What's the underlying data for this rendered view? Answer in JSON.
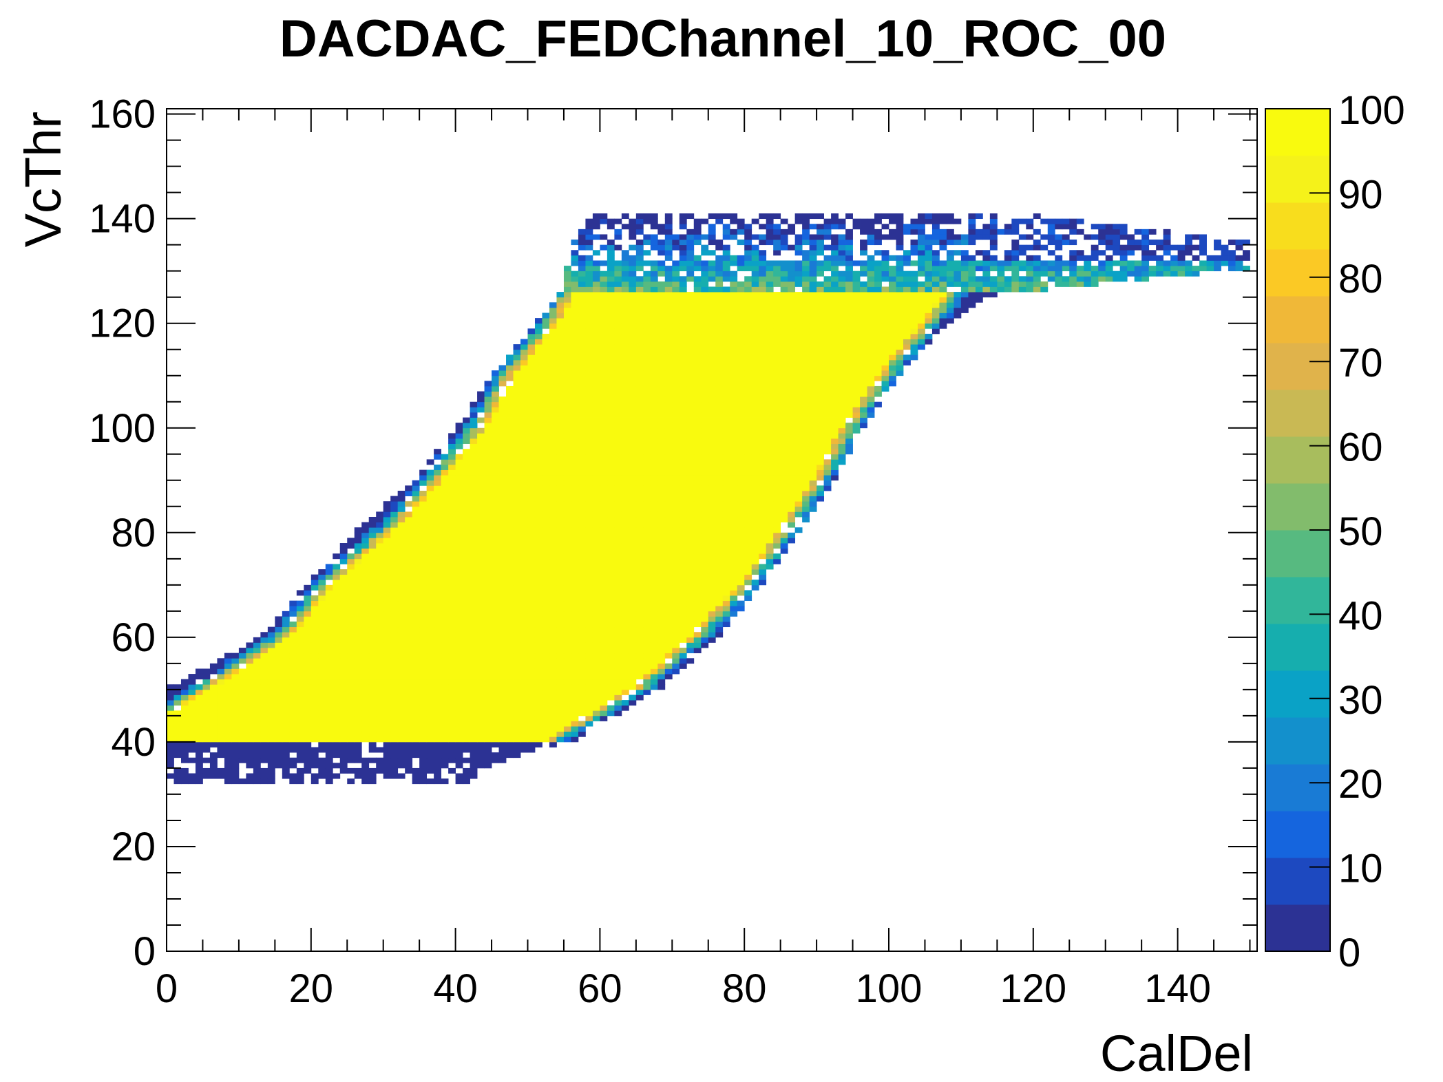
{
  "chart_data": {
    "type": "heatmap",
    "title": "DACDAC_FEDChannel_10_ROC_00",
    "xlabel": "CalDel",
    "ylabel": "VcThr",
    "xlim": [
      0,
      151
    ],
    "ylim": [
      0,
      161
    ],
    "zlim": [
      0,
      100
    ],
    "x_ticks": [
      0,
      20,
      40,
      60,
      80,
      100,
      120,
      140
    ],
    "y_ticks": [
      0,
      20,
      40,
      60,
      80,
      100,
      120,
      140,
      160
    ],
    "z_ticks": [
      0,
      10,
      20,
      30,
      40,
      50,
      60,
      70,
      80,
      90,
      100
    ],
    "x_ticks_text": [
      "0",
      "20",
      "40",
      "60",
      "80",
      "100",
      "120",
      "140"
    ],
    "y_ticks_text": [
      "0",
      "20",
      "40",
      "60",
      "80",
      "100",
      "120",
      "140",
      "160"
    ],
    "z_ticks_text": [
      "0",
      "10",
      "20",
      "30",
      "40",
      "50",
      "60",
      "70",
      "80",
      "90",
      "100"
    ],
    "grid": false,
    "colorbar": "right",
    "palette": [
      "#2c3294",
      "#1d49c0",
      "#1565de",
      "#197bd5",
      "#1390cc",
      "#0aa2c6",
      "#16aeae",
      "#31b69a",
      "#57ba80",
      "#82bc6c",
      "#a8bd5d",
      "#c9b954",
      "#e0b34b",
      "#f0b838",
      "#fbc925",
      "#f8dd1d",
      "#f5f21a",
      "#f9fa0e"
    ],
    "efficiency_region": {
      "description_rows": [
        {
          "vcthr": 32,
          "full_from": null,
          "full_to": null,
          "edge_from": 0,
          "edge_to": 41
        },
        {
          "vcthr": 35,
          "full_from": null,
          "full_to": null,
          "edge_from": 0,
          "edge_to": 44
        },
        {
          "vcthr": 40,
          "full_from": 0,
          "full_to": 52,
          "edge_from": 0,
          "edge_to": 56
        },
        {
          "vcthr": 45,
          "full_from": 0,
          "full_to": 58,
          "edge_from": 0,
          "edge_to": 62
        },
        {
          "vcthr": 50,
          "full_from": 6,
          "full_to": 64,
          "edge_from": 0,
          "edge_to": 68
        },
        {
          "vcthr": 60,
          "full_from": 17,
          "full_to": 72,
          "edge_from": 13,
          "edge_to": 76
        },
        {
          "vcthr": 70,
          "full_from": 23,
          "full_to": 79,
          "edge_from": 19,
          "edge_to": 82
        },
        {
          "vcthr": 80,
          "full_from": 31,
          "full_to": 84,
          "edge_from": 26,
          "edge_to": 87
        },
        {
          "vcthr": 90,
          "full_from": 38,
          "full_to": 89,
          "edge_from": 34,
          "edge_to": 92
        },
        {
          "vcthr": 100,
          "full_from": 44,
          "full_to": 93,
          "edge_from": 40,
          "edge_to": 96
        },
        {
          "vcthr": 110,
          "full_from": 48,
          "full_to": 98,
          "edge_from": 45,
          "edge_to": 101
        },
        {
          "vcthr": 120,
          "full_from": 54,
          "full_to": 104,
          "edge_from": 51,
          "edge_to": 108
        },
        {
          "vcthr": 125,
          "full_from": 56,
          "full_to": 107,
          "edge_from": 54,
          "edge_to": 114
        },
        {
          "vcthr": 130,
          "full_from": null,
          "full_to": null,
          "edge_from": 55,
          "edge_to": 150
        },
        {
          "vcthr": 135,
          "full_from": null,
          "full_to": null,
          "edge_from": 56,
          "edge_to": 150
        },
        {
          "vcthr": 140,
          "full_from": null,
          "full_to": null,
          "edge_from": 58,
          "edge_to": 120
        }
      ]
    }
  }
}
